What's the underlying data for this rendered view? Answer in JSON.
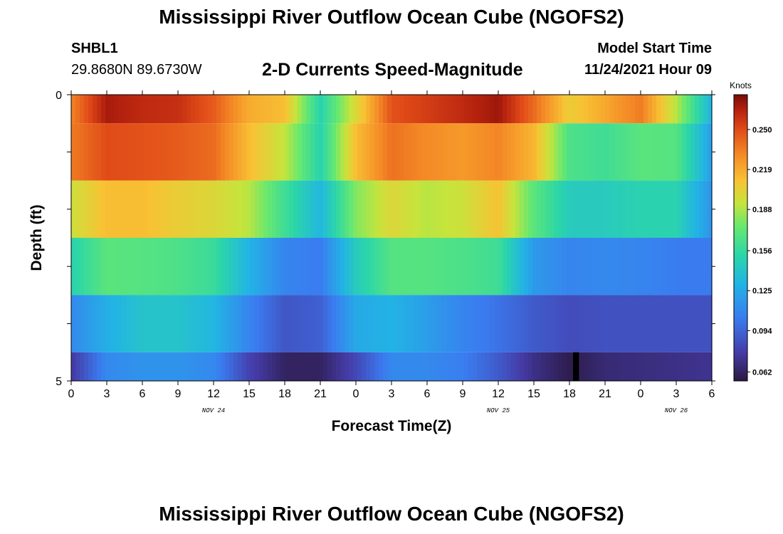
{
  "header": {
    "title": "Mississippi River Outflow Ocean Cube (NGOFS2)",
    "station_id": "SHBL1",
    "station_coords": "29.8680N  89.6730W",
    "subtitle": "2-D Currents Speed-Magnitude",
    "model_start_label": "Model Start Time",
    "model_start_value": "11/24/2021 Hour 09"
  },
  "footer": {
    "title_repeat": "Mississippi River Outflow Ocean Cube (NGOFS2)"
  },
  "chart_data": {
    "type": "heatmap",
    "title": "2-D Currents Speed-Magnitude",
    "xlabel": "Forecast Time(Z)",
    "ylabel": "Depth (ft)",
    "x_tick_labels": [
      "0",
      "3",
      "6",
      "9",
      "12",
      "15",
      "18",
      "21",
      "0",
      "3",
      "6",
      "9",
      "12",
      "15",
      "18",
      "21",
      "0",
      "3",
      "6"
    ],
    "x_date_labels": [
      {
        "text": "NOV 24",
        "tick_index": 4
      },
      {
        "text": "NOV 25",
        "tick_index": 12
      },
      {
        "text": "NOV 26",
        "tick_index": 17
      }
    ],
    "y_tick_labels": [
      "0",
      "5"
    ],
    "ylim": [
      0,
      5
    ],
    "colorbar": {
      "label": "Knots",
      "ticks": [
        "0.250",
        "0.219",
        "0.188",
        "0.156",
        "0.125",
        "0.094",
        "0.062"
      ],
      "range": [
        0.055,
        0.277
      ]
    },
    "hours": [
      0,
      3,
      6,
      9,
      12,
      15,
      18,
      21,
      24,
      27,
      30,
      33,
      36,
      39,
      42,
      45,
      48,
      51,
      54
    ],
    "layers": [
      {
        "depth_range": [
          0,
          0.5
        ],
        "values": [
          0.232,
          0.268,
          0.262,
          0.26,
          0.245,
          0.218,
          0.212,
          0.15,
          0.2,
          0.248,
          0.255,
          0.262,
          0.27,
          0.24,
          0.205,
          0.22,
          0.235,
          0.19,
          0.13
        ]
      },
      {
        "depth_range": [
          0.5,
          1.5
        ],
        "values": [
          0.235,
          0.25,
          0.248,
          0.245,
          0.24,
          0.212,
          0.192,
          0.15,
          0.212,
          0.238,
          0.23,
          0.225,
          0.232,
          0.215,
          0.165,
          0.16,
          0.17,
          0.168,
          0.12
        ]
      },
      {
        "depth_range": [
          1.5,
          2.5
        ],
        "values": [
          0.195,
          0.212,
          0.212,
          0.205,
          0.2,
          0.19,
          0.16,
          0.132,
          0.18,
          0.2,
          0.19,
          0.195,
          0.21,
          0.17,
          0.145,
          0.145,
          0.15,
          0.15,
          0.115
        ]
      },
      {
        "depth_range": [
          2.5,
          3.5
        ],
        "values": [
          0.15,
          0.17,
          0.168,
          0.165,
          0.158,
          0.13,
          0.108,
          0.104,
          0.145,
          0.168,
          0.168,
          0.165,
          0.16,
          0.118,
          0.108,
          0.11,
          0.108,
          0.104,
          0.104
        ]
      },
      {
        "depth_range": [
          3.5,
          4.5
        ],
        "values": [
          0.11,
          0.128,
          0.14,
          0.14,
          0.132,
          0.108,
          0.088,
          0.092,
          0.125,
          0.13,
          0.12,
          0.108,
          0.1,
          0.09,
          0.084,
          0.086,
          0.086,
          0.086,
          0.086
        ]
      },
      {
        "depth_range": [
          4.5,
          5
        ],
        "values": [
          0.075,
          0.11,
          0.115,
          0.115,
          0.11,
          0.08,
          0.062,
          0.062,
          0.082,
          0.11,
          0.11,
          0.105,
          0.09,
          0.07,
          0.058,
          0.066,
          0.068,
          0.07,
          0.072
        ]
      }
    ],
    "missing_data": [
      {
        "hour_start": 42.3,
        "hour_end": 42.8,
        "depth_range": [
          4.5,
          5
        ]
      }
    ]
  }
}
